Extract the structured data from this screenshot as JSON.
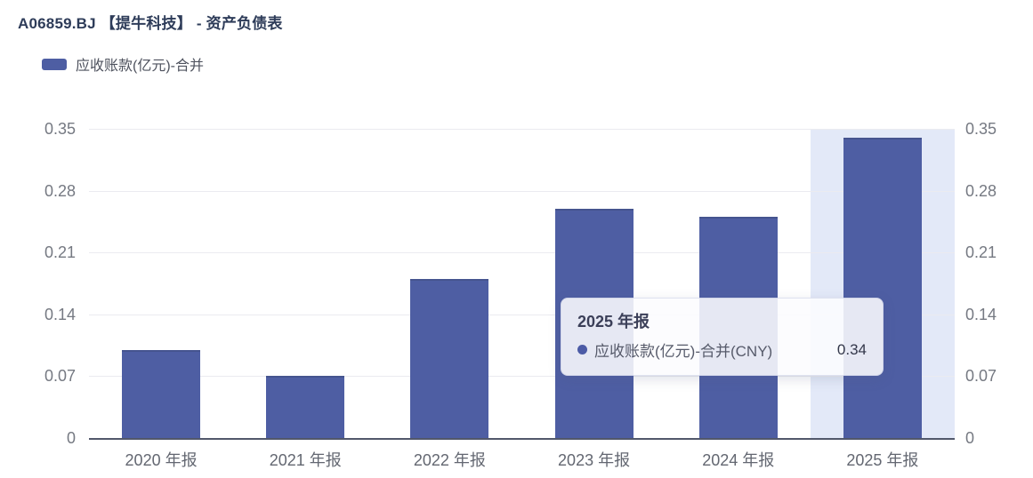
{
  "header": {
    "title": "A06859.BJ 【提牛科技】 - 资产负债表"
  },
  "legend": {
    "label": "应收账款(亿元)-合并",
    "swatch_color": "#4e5ea3"
  },
  "chart_data": {
    "type": "bar",
    "title": "A06859.BJ 【提牛科技】 - 资产负债表",
    "series_name": "应收账款(亿元)-合并",
    "categories": [
      "2020 年报",
      "2021 年报",
      "2022 年报",
      "2023 年报",
      "2024 年报",
      "2025 年报"
    ],
    "values": [
      0.1,
      0.07,
      0.18,
      0.26,
      0.25,
      0.34
    ],
    "ylabel": "应收账款(亿元)",
    "ylim": [
      0,
      0.35
    ],
    "yticks": [
      0,
      0.07,
      0.14,
      0.21,
      0.28,
      0.35
    ],
    "ytick_labels": [
      "0",
      "0.07",
      "0.14",
      "0.21",
      "0.28",
      "0.35"
    ],
    "y_axis_sides": "both",
    "grid": true,
    "legend_position": "top-left",
    "bar_color": "#4e5ea3",
    "hovered_category_index": 5,
    "hover_band_color": "#e3e9f8"
  },
  "tooltip": {
    "title": "2025 年报",
    "series_label": "应收账款(亿元)-合并(CNY)",
    "value": "0.34",
    "marker_color": "#4c5ba6"
  }
}
